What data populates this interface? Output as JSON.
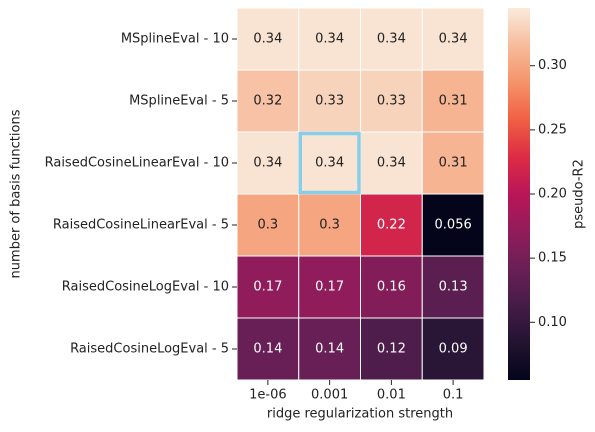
{
  "chart_data": {
    "type": "heatmap",
    "xlabel": "ridge regularization strength",
    "ylabel": "number of basis functions",
    "colorbar_label": "pseudo-R2",
    "x": [
      "1e-06",
      "0.001",
      "0.01",
      "0.1"
    ],
    "y": [
      "MSplineEval - 10",
      "MSplineEval - 5",
      "RaisedCosineLinearEval - 10",
      "RaisedCosineLinearEval - 5",
      "RaisedCosineLogEval - 10",
      "RaisedCosineLogEval - 5"
    ],
    "values": [
      [
        0.34,
        0.34,
        0.34,
        0.34
      ],
      [
        0.32,
        0.33,
        0.33,
        0.31
      ],
      [
        0.34,
        0.34,
        0.34,
        0.31
      ],
      [
        0.3,
        0.3,
        0.22,
        0.056
      ],
      [
        0.17,
        0.17,
        0.16,
        0.13
      ],
      [
        0.14,
        0.14,
        0.12,
        0.09
      ]
    ],
    "colormap": "rocket",
    "zlim": [
      0.055,
      0.345
    ],
    "zticks": [
      {
        "value": 0.1,
        "label": "0.10"
      },
      0.15,
      {
        "value": 0.2,
        "label": "0.20"
      },
      0.25,
      {
        "value": 0.3,
        "label": "0.30"
      }
    ],
    "highlight": {
      "row": 2,
      "col": 1,
      "color": "#87ceeb"
    }
  }
}
